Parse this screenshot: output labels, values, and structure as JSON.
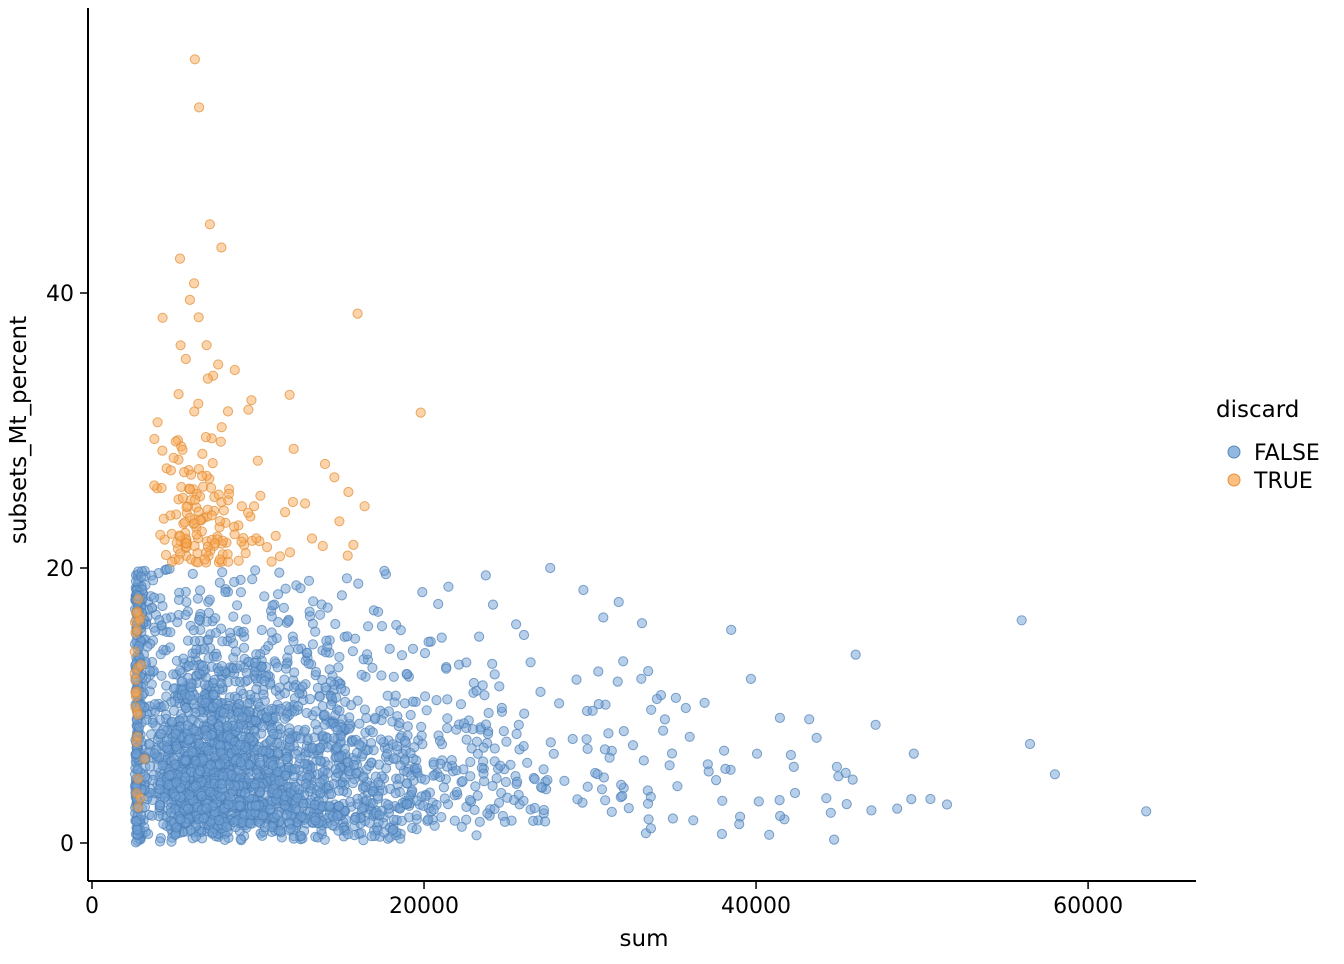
{
  "figure": {
    "background": "#FFFFFF"
  },
  "chart_data": {
    "type": "scatter",
    "title": "",
    "xlabel": "sum",
    "ylabel": "subsets_Mt_percent",
    "xlim": [
      0,
      66500
    ],
    "ylim": [
      0,
      60
    ],
    "x_ticks": [
      0,
      20000,
      40000,
      60000
    ],
    "y_ticks": [
      0,
      20,
      40
    ],
    "grid": false,
    "axis_color": "#000000",
    "text_color": "#000000",
    "legend": {
      "title": "discard",
      "position": "right",
      "entries": [
        {
          "label": "FALSE",
          "series": 0
        },
        {
          "label": "TRUE",
          "series": 1
        }
      ]
    },
    "point_style": {
      "radius": 4.6,
      "fill_opacity": 0.5,
      "stroke_opacity": 0.7,
      "stroke_width": 1
    },
    "seed": 42,
    "series": [
      {
        "name": "FALSE",
        "fill": "#6FA0D4",
        "stroke": "#4A7EB5",
        "clusters": [
          {
            "n": 2350,
            "x": {
              "dist": "lognormal",
              "offset": 2500,
              "mu": 8.9,
              "sigma": 0.72,
              "max": 50000
            },
            "y": {
              "dist": "gamma2",
              "scale": 3.3,
              "max": 20
            },
            "damp": {
              "x0": 22000,
              "span": 42000,
              "f": 0.45
            }
          },
          {
            "n": 300,
            "x": {
              "dist": "lognormal",
              "offset": 2580,
              "mu": 5.6,
              "sigma": 1.1,
              "max": 4300
            },
            "y": {
              "dist": "uniform",
              "min": 0,
              "max": 19.8
            }
          }
        ]
      },
      {
        "name": "TRUE",
        "fill": "#F9A958",
        "stroke": "#E08A30",
        "clusters": [
          {
            "n": 155,
            "x": {
              "dist": "lognormal",
              "offset": 3000,
              "mu": 8.2,
              "sigma": 0.52,
              "max": 20500
            },
            "y": {
              "dist": "exp",
              "min": 20.4,
              "scale": 4.0,
              "max": 46
            }
          },
          {
            "n": 26,
            "x": {
              "dist": "lognormal",
              "offset": 2550,
              "mu": 4.8,
              "sigma": 0.9,
              "max": 3600
            },
            "y": {
              "dist": "uniform",
              "min": 0.3,
              "max": 19.5
            }
          }
        ]
      }
    ],
    "notable_points": [
      {
        "s": 1,
        "x": 6200,
        "y": 57.0
      },
      {
        "s": 1,
        "x": 6450,
        "y": 53.5
      },
      {
        "s": 1,
        "x": 7100,
        "y": 45.0
      },
      {
        "s": 1,
        "x": 5300,
        "y": 42.5
      },
      {
        "s": 1,
        "x": 6150,
        "y": 40.7
      },
      {
        "s": 1,
        "x": 5900,
        "y": 39.5
      },
      {
        "s": 1,
        "x": 4250,
        "y": 38.2
      },
      {
        "s": 1,
        "x": 16000,
        "y": 38.5
      },
      {
        "s": 1,
        "x": 6900,
        "y": 36.2
      },
      {
        "s": 1,
        "x": 5650,
        "y": 35.2
      },
      {
        "s": 1,
        "x": 7600,
        "y": 34.8
      },
      {
        "s": 1,
        "x": 8600,
        "y": 34.4
      },
      {
        "s": 1,
        "x": 9600,
        "y": 32.2
      },
      {
        "s": 1,
        "x": 11900,
        "y": 32.6
      },
      {
        "s": 1,
        "x": 19800,
        "y": 31.3
      },
      {
        "s": 1,
        "x": 3950,
        "y": 30.6
      },
      {
        "s": 1,
        "x": 5050,
        "y": 29.2
      },
      {
        "s": 1,
        "x": 5450,
        "y": 28.6
      },
      {
        "s": 1,
        "x": 6650,
        "y": 28.3
      },
      {
        "s": 1,
        "x": 4750,
        "y": 27.1
      },
      {
        "s": 1,
        "x": 14600,
        "y": 26.6
      },
      {
        "s": 1,
        "x": 3750,
        "y": 26.0
      },
      {
        "s": 1,
        "x": 8250,
        "y": 25.4
      },
      {
        "s": 1,
        "x": 12100,
        "y": 24.8
      },
      {
        "s": 1,
        "x": 14900,
        "y": 23.4
      },
      {
        "s": 1,
        "x": 13900,
        "y": 21.6
      },
      {
        "s": 1,
        "x": 15400,
        "y": 20.9
      },
      {
        "s": 0,
        "x": 63500,
        "y": 2.3
      },
      {
        "s": 0,
        "x": 58000,
        "y": 5.0
      },
      {
        "s": 0,
        "x": 56500,
        "y": 7.2
      },
      {
        "s": 0,
        "x": 56000,
        "y": 16.2
      },
      {
        "s": 0,
        "x": 51500,
        "y": 2.8
      },
      {
        "s": 0,
        "x": 50500,
        "y": 3.2
      },
      {
        "s": 0,
        "x": 49500,
        "y": 6.5
      },
      {
        "s": 0,
        "x": 48500,
        "y": 2.5
      },
      {
        "s": 0,
        "x": 47200,
        "y": 8.6
      },
      {
        "s": 0,
        "x": 46000,
        "y": 13.7
      },
      {
        "s": 0,
        "x": 45400,
        "y": 5.1
      },
      {
        "s": 0,
        "x": 44500,
        "y": 2.2
      },
      {
        "s": 0,
        "x": 43200,
        "y": 9.0
      },
      {
        "s": 0,
        "x": 42100,
        "y": 6.4
      },
      {
        "s": 0,
        "x": 38500,
        "y": 15.5
      },
      {
        "s": 0,
        "x": 36900,
        "y": 10.2
      },
      {
        "s": 0,
        "x": 33500,
        "y": 12.5
      },
      {
        "s": 0,
        "x": 30800,
        "y": 16.4
      },
      {
        "s": 0,
        "x": 29600,
        "y": 18.4
      },
      {
        "s": 0,
        "x": 27600,
        "y": 20.0
      }
    ]
  }
}
